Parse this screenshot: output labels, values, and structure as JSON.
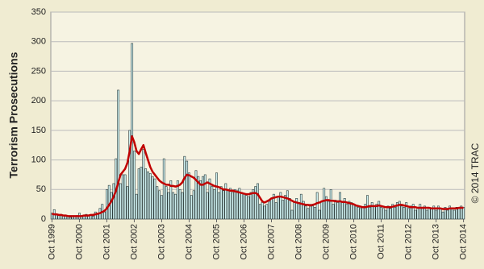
{
  "chart_data": {
    "type": "bar",
    "y_label": "Terrorism Prosecutions",
    "copyright": "© 2014 TRAC",
    "categories": [
      "Oct 1999",
      null,
      null,
      null,
      null,
      null,
      null,
      null,
      null,
      null,
      null,
      null,
      "Oct 2000",
      null,
      null,
      null,
      null,
      null,
      null,
      null,
      null,
      null,
      null,
      null,
      "Oct 2001",
      null,
      null,
      null,
      null,
      null,
      null,
      null,
      null,
      null,
      null,
      null,
      "Oct 2002",
      null,
      null,
      null,
      null,
      null,
      null,
      null,
      null,
      null,
      null,
      null,
      "Oct 2003",
      null,
      null,
      null,
      null,
      null,
      null,
      null,
      null,
      null,
      null,
      null,
      "Oct 2004",
      null,
      null,
      null,
      null,
      null,
      null,
      null,
      null,
      null,
      null,
      null,
      "Oct 2005",
      null,
      null,
      null,
      null,
      null,
      null,
      null,
      null,
      null,
      null,
      null,
      "Oct 2006",
      null,
      null,
      null,
      null,
      null,
      null,
      null,
      null,
      null,
      null,
      null,
      "Oct 2007",
      null,
      null,
      null,
      null,
      null,
      null,
      null,
      null,
      null,
      null,
      null,
      "Oct 2008",
      null,
      null,
      null,
      null,
      null,
      null,
      null,
      null,
      null,
      null,
      null,
      "Oct 2009",
      null,
      null,
      null,
      null,
      null,
      null,
      null,
      null,
      null,
      null,
      null,
      "Oct 2010",
      null,
      null,
      null,
      null,
      null,
      null,
      null,
      null,
      null,
      null,
      null,
      "Oct 2011",
      null,
      null,
      null,
      null,
      null,
      null,
      null,
      null,
      null,
      null,
      null,
      "Oct 2012",
      null,
      null,
      null,
      null,
      null,
      null,
      null,
      null,
      null,
      null,
      null,
      "Oct 2013",
      null,
      null,
      null,
      null,
      null,
      null,
      null,
      null,
      null,
      null,
      null,
      "Oct 2014"
    ],
    "series": [
      {
        "type": "bar",
        "color": "#cdeeee",
        "values": [
          10,
          16,
          8,
          7,
          8,
          6,
          5,
          4,
          3,
          5,
          4,
          6,
          10,
          4,
          5,
          8,
          6,
          7,
          5,
          12,
          8,
          18,
          25,
          12,
          50,
          57,
          45,
          60,
          102,
          218,
          60,
          75,
          75,
          55,
          150,
          297,
          115,
          42,
          85,
          88,
          118,
          85,
          80,
          77,
          72,
          68,
          55,
          48,
          40,
          102,
          55,
          45,
          65,
          45,
          42,
          65,
          50,
          45,
          106,
          98,
          78,
          40,
          48,
          82,
          72,
          65,
          72,
          75,
          45,
          68,
          55,
          50,
          78,
          45,
          55,
          48,
          60,
          50,
          52,
          45,
          50,
          48,
          52,
          45,
          42,
          40,
          38,
          45,
          50,
          55,
          60,
          25,
          28,
          22,
          25,
          30,
          35,
          42,
          28,
          38,
          45,
          32,
          40,
          48,
          35,
          15,
          28,
          35,
          28,
          42,
          30,
          22,
          18,
          25,
          22,
          20,
          45,
          15,
          30,
          52,
          38,
          30,
          50,
          25,
          32,
          28,
          45,
          30,
          35,
          25,
          30,
          28,
          25,
          22,
          20,
          18,
          20,
          25,
          40,
          20,
          28,
          22,
          25,
          30,
          20,
          18,
          15,
          22,
          18,
          25,
          20,
          28,
          30,
          22,
          20,
          28,
          18,
          22,
          25,
          15,
          20,
          25,
          18,
          22,
          15,
          20,
          18,
          22,
          15,
          22,
          18,
          12,
          20,
          15,
          22,
          18,
          15,
          20,
          18,
          22,
          20
        ]
      },
      {
        "type": "line",
        "color": "#c00000",
        "values": [
          9,
          8,
          8,
          7,
          7,
          6,
          6,
          5,
          5,
          5,
          5,
          5,
          5,
          5,
          6,
          6,
          6,
          7,
          7,
          8,
          9,
          10,
          12,
          14,
          18,
          24,
          30,
          38,
          48,
          62,
          75,
          80,
          85,
          95,
          115,
          140,
          130,
          115,
          110,
          118,
          125,
          112,
          100,
          88,
          80,
          75,
          70,
          65,
          62,
          60,
          58,
          58,
          56,
          56,
          55,
          56,
          58,
          62,
          70,
          75,
          74,
          72,
          70,
          66,
          62,
          58,
          58,
          60,
          62,
          60,
          58,
          56,
          55,
          54,
          52,
          50,
          50,
          49,
          48,
          48,
          47,
          46,
          45,
          44,
          43,
          42,
          42,
          43,
          44,
          44,
          42,
          36,
          30,
          28,
          30,
          32,
          35,
          36,
          37,
          38,
          38,
          37,
          36,
          35,
          33,
          31,
          29,
          28,
          27,
          26,
          25,
          24,
          24,
          23,
          24,
          25,
          27,
          28,
          30,
          31,
          32,
          32,
          31,
          31,
          30,
          30,
          30,
          29,
          29,
          28,
          27,
          26,
          25,
          23,
          22,
          21,
          20,
          20,
          21,
          22,
          22,
          22,
          22,
          23,
          22,
          21,
          20,
          20,
          20,
          21,
          22,
          23,
          24,
          24,
          23,
          22,
          21,
          20,
          20,
          20,
          19,
          19,
          19,
          19,
          19,
          19,
          18,
          18,
          18,
          18,
          18,
          17,
          17,
          17,
          18,
          18,
          18,
          18,
          19,
          19,
          19
        ]
      }
    ],
    "ylim": [
      0,
      350
    ],
    "yticks": [
      0,
      50,
      100,
      150,
      200,
      250,
      300,
      350
    ],
    "grid": true
  }
}
